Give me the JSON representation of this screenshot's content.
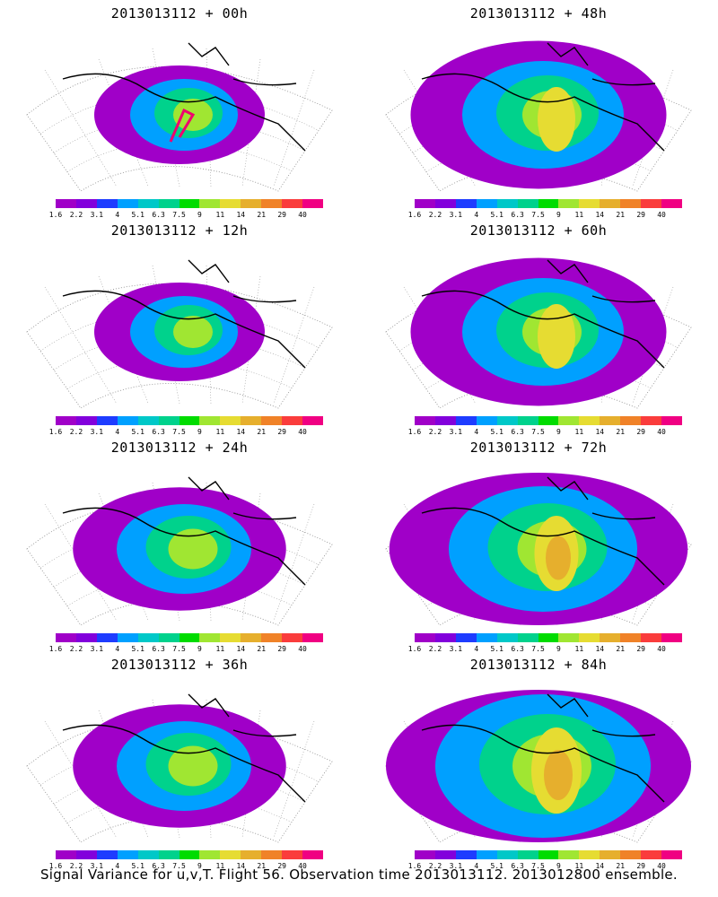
{
  "caption": "Signal Variance for u,v,T. Flight 56. Observation time 2013013112. 2013012800 ensemble.",
  "colorbar": {
    "tick_labels": [
      "1.6",
      "2.2",
      "3.1",
      "4",
      "5.1",
      "6.3",
      "7.5",
      "9",
      "11",
      "14",
      "21",
      "29",
      "40"
    ],
    "colors": [
      "#a000c8",
      "#8200dc",
      "#1e3cff",
      "#00a0ff",
      "#00c8c8",
      "#00d28c",
      "#00dc00",
      "#a0e632",
      "#e6dc32",
      "#e6af2d",
      "#f08228",
      "#fa3c3c",
      "#f00082"
    ]
  },
  "panels": [
    {
      "title": "2013013112 + 00h"
    },
    {
      "title": "2013013112 + 48h"
    },
    {
      "title": "2013013112 + 12h"
    },
    {
      "title": "2013013112 + 60h"
    },
    {
      "title": "2013013112 + 24h"
    },
    {
      "title": "2013013112 + 72h"
    },
    {
      "title": "2013013112 + 36h"
    },
    {
      "title": "2013013112 + 84h"
    }
  ]
}
